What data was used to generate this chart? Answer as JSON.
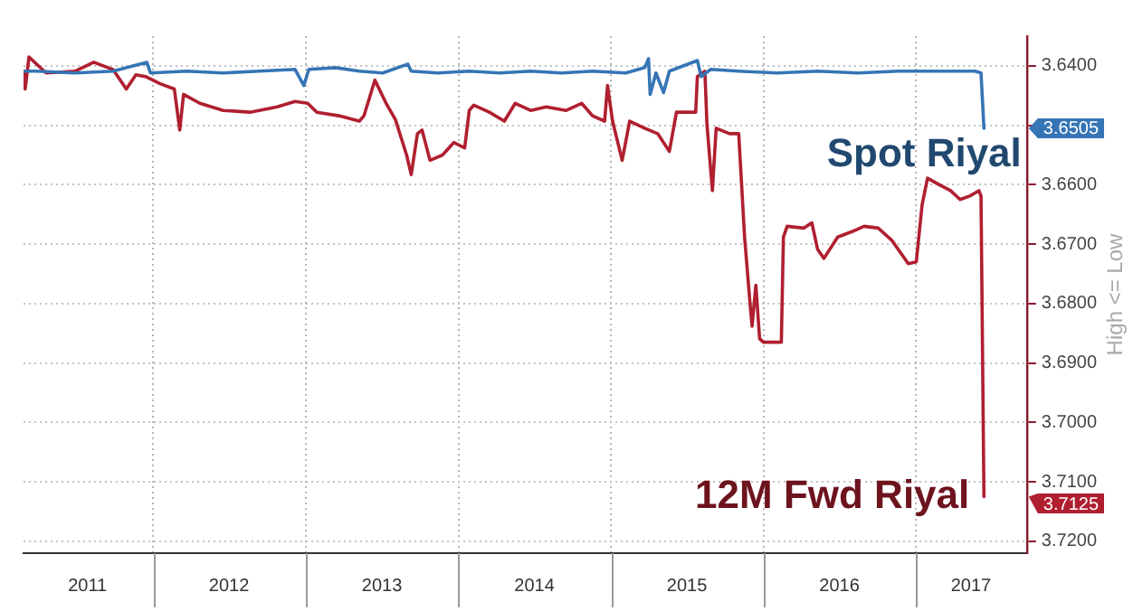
{
  "chart_data": {
    "type": "line",
    "ylabel": "High <= Low",
    "legend": "right",
    "series": [
      {
        "name": "Spot Riyal",
        "color": "#3575b5",
        "x": [
          "2011-02-25",
          "2011-03-28",
          "2011-06-28",
          "2011-09-27",
          "2011-12-17",
          "2011-12-26",
          "2012-03-22",
          "2012-06-17",
          "2012-09-10",
          "2012-12-06",
          "2012-12-27",
          "2013-01-08",
          "2013-03-13",
          "2013-05-09",
          "2013-07-04",
          "2013-09-02",
          "2013-09-10",
          "2013-11-13",
          "2014-01-27",
          "2014-04-10",
          "2014-06-23",
          "2014-09-05",
          "2014-11-18",
          "2015-02-06",
          "2015-03-23",
          "2015-04-01",
          "2015-04-05",
          "2015-04-19",
          "2015-05-07",
          "2015-05-21",
          "2015-07-27",
          "2015-08-05",
          "2015-08-28",
          "2015-11-03",
          "2016-02-03",
          "2016-05-10",
          "2016-08-14",
          "2016-11-19",
          "2017-02-20",
          "2017-05-22",
          "2017-06-05",
          "2017-06-12"
        ],
        "values": [
          3.6409,
          3.6409,
          3.6412,
          3.6409,
          3.6394,
          3.6412,
          3.6409,
          3.6412,
          3.6409,
          3.6406,
          3.6433,
          3.6406,
          3.6403,
          3.6409,
          3.6412,
          3.6397,
          3.6409,
          3.6412,
          3.6409,
          3.6412,
          3.6409,
          3.6412,
          3.6409,
          3.6412,
          3.6403,
          3.6388,
          3.6448,
          3.6412,
          3.6445,
          3.6409,
          3.6391,
          3.6418,
          3.6406,
          3.6409,
          3.6412,
          3.6409,
          3.6412,
          3.6409,
          3.6409,
          3.6409,
          3.6412,
          3.6505
        ]
      },
      {
        "name": "12M Fwd Riyal",
        "color": "#b01f30",
        "x": [
          "2011-02-25",
          "2011-03-01",
          "2011-03-10",
          "2011-04-20",
          "2011-06-28",
          "2011-08-12",
          "2011-09-27",
          "2011-10-29",
          "2011-11-21",
          "2011-12-14",
          "2012-01-18",
          "2012-02-21",
          "2012-03-05",
          "2012-03-14",
          "2012-04-22",
          "2012-06-17",
          "2012-08-20",
          "2012-10-24",
          "2012-12-06",
          "2013-01-05",
          "2013-01-27",
          "2013-03-21",
          "2013-05-09",
          "2013-05-20",
          "2013-06-15",
          "2013-07-12",
          "2013-08-03",
          "2013-08-30",
          "2013-09-10",
          "2013-09-25",
          "2013-10-06",
          "2013-10-25",
          "2013-11-24",
          "2013-12-21",
          "2014-01-16",
          "2014-01-27",
          "2014-02-07",
          "2014-03-16",
          "2014-04-21",
          "2014-05-17",
          "2014-06-23",
          "2014-07-30",
          "2014-09-16",
          "2014-10-23",
          "2014-11-18",
          "2014-12-17",
          "2014-12-24",
          "2015-01-05",
          "2015-01-28",
          "2015-02-15",
          "2015-03-23",
          "2015-04-23",
          "2015-05-21",
          "2015-06-07",
          "2015-07-23",
          "2015-07-27",
          "2015-08-14",
          "2015-08-19",
          "2015-09-01",
          "2015-09-10",
          "2015-10-12",
          "2015-11-03",
          "2015-11-17",
          "2015-11-30",
          "2015-12-05",
          "2015-12-14",
          "2015-12-23",
          "2016-01-01",
          "2016-02-13",
          "2016-02-18",
          "2016-02-27",
          "2016-04-07",
          "2016-04-26",
          "2016-05-10",
          "2016-05-25",
          "2016-06-27",
          "2016-07-31",
          "2016-08-29",
          "2016-10-02",
          "2016-11-04",
          "2016-12-13",
          "2017-01-01",
          "2017-01-15",
          "2017-01-28",
          "2017-02-20",
          "2017-03-24",
          "2017-04-16",
          "2017-05-09",
          "2017-05-31",
          "2017-06-05",
          "2017-06-12"
        ],
        "values": [
          3.6409,
          3.6439,
          3.6385,
          3.6412,
          3.6409,
          3.6394,
          3.6406,
          3.6439,
          3.6415,
          3.6418,
          3.643,
          3.6439,
          3.6508,
          3.6448,
          3.6463,
          3.6475,
          3.6478,
          3.6469,
          3.646,
          3.6463,
          3.6478,
          3.6484,
          3.6493,
          3.6484,
          3.6424,
          3.6463,
          3.649,
          3.655,
          3.6583,
          3.6514,
          3.6508,
          3.6559,
          3.655,
          3.6529,
          3.6538,
          3.6475,
          3.6466,
          3.6478,
          3.6493,
          3.6463,
          3.6475,
          3.6469,
          3.6475,
          3.6463,
          3.6484,
          3.6493,
          3.6433,
          3.6493,
          3.6559,
          3.6493,
          3.6505,
          3.6514,
          3.6544,
          3.6478,
          3.6478,
          3.6418,
          3.6409,
          3.6499,
          3.661,
          3.6505,
          3.6514,
          3.6514,
          3.6688,
          3.6799,
          3.6838,
          3.6769,
          3.6859,
          3.6865,
          3.6865,
          3.6688,
          3.667,
          3.6673,
          3.6664,
          3.6709,
          3.6724,
          3.6688,
          3.6679,
          3.667,
          3.6673,
          3.6694,
          3.6733,
          3.673,
          3.6634,
          3.6589,
          3.6598,
          3.661,
          3.6625,
          3.6619,
          3.661,
          3.6619,
          3.7125
        ]
      }
    ],
    "annotations": [
      "3.6505",
      "3.7125"
    ],
    "xlim": [
      "2011-02-25",
      "2017-09-23"
    ],
    "xticks": [
      {
        "value": "2011-07-28",
        "label": "2011"
      },
      {
        "value": "2012-01-01",
        "label": null
      },
      {
        "value": "2012-07-01",
        "label": "2012"
      },
      {
        "value": "2013-01-01",
        "label": null
      },
      {
        "value": "2013-07-02",
        "label": "2013"
      },
      {
        "value": "2014-01-01",
        "label": null
      },
      {
        "value": "2014-07-02",
        "label": "2014"
      },
      {
        "value": "2015-01-01",
        "label": null
      },
      {
        "value": "2015-07-02",
        "label": "2015"
      },
      {
        "value": "2016-01-01",
        "label": null
      },
      {
        "value": "2016-07-01",
        "label": "2016"
      },
      {
        "value": "2017-01-01",
        "label": null
      },
      {
        "value": "2017-05-12",
        "label": "2017"
      }
    ],
    "ylim": [
      3.722,
      3.635
    ],
    "yticks": [
      {
        "value": 3.64,
        "label": "3.6400"
      },
      {
        "value": 3.65,
        "label": null
      },
      {
        "value": 3.66,
        "label": "3.6600"
      },
      {
        "value": 3.67,
        "label": "3.6700"
      },
      {
        "value": 3.68,
        "label": "3.6800"
      },
      {
        "value": 3.69,
        "label": "3.6900"
      },
      {
        "value": 3.7,
        "label": "3.7000"
      },
      {
        "value": 3.71,
        "label": "3.7100"
      },
      {
        "value": 3.72,
        "label": "3.7200"
      }
    ],
    "grid": true
  }
}
